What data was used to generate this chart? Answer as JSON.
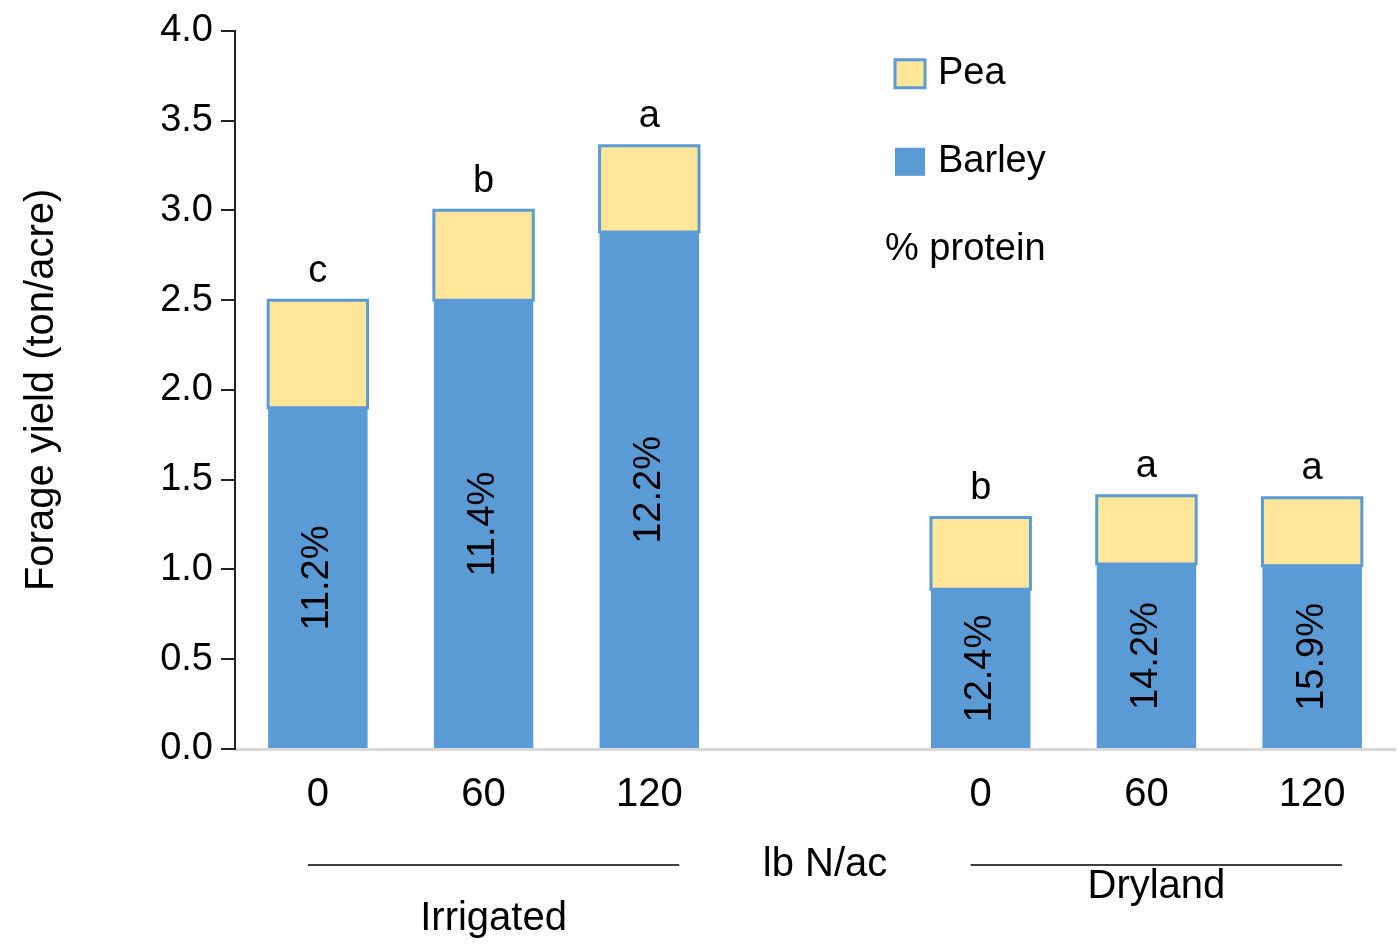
{
  "chart_data": {
    "type": "bar",
    "stacked": true,
    "xlabel": "lb N/ac",
    "ylabel": "Forage yield (ton/acre)",
    "categories": [
      "0",
      "60",
      "120",
      null,
      "0",
      "60",
      "120"
    ],
    "series": [
      {
        "name": "Barley",
        "color": "#5b9bd5",
        "values": [
          1.9,
          2.5,
          2.88,
          null,
          0.89,
          1.03,
          1.02
        ]
      },
      {
        "name": "Pea",
        "color": "#ffe699",
        "values": [
          0.6,
          0.5,
          0.48,
          null,
          0.4,
          0.38,
          0.38
        ],
        "value_labels": [
          "c",
          "b",
          "a",
          null,
          "b",
          "a",
          "a"
        ]
      }
    ],
    "ylim": [
      0,
      4
    ],
    "yticks": [
      {
        "value": 0,
        "label": "0.0"
      },
      0.5,
      {
        "value": 1,
        "label": "1.0"
      },
      1.5,
      {
        "value": 2,
        "label": "2.0"
      },
      2.5,
      {
        "value": 3,
        "label": "3.0"
      },
      3.5,
      {
        "value": 4,
        "label": "4.0"
      }
    ],
    "legend": "top right",
    "annotations": [
      "% protein",
      "Irrigated",
      "Dryland",
      "11.2%",
      "11.4%",
      "12.2%",
      "12.4%",
      "14.2%",
      "15.9%"
    ]
  }
}
